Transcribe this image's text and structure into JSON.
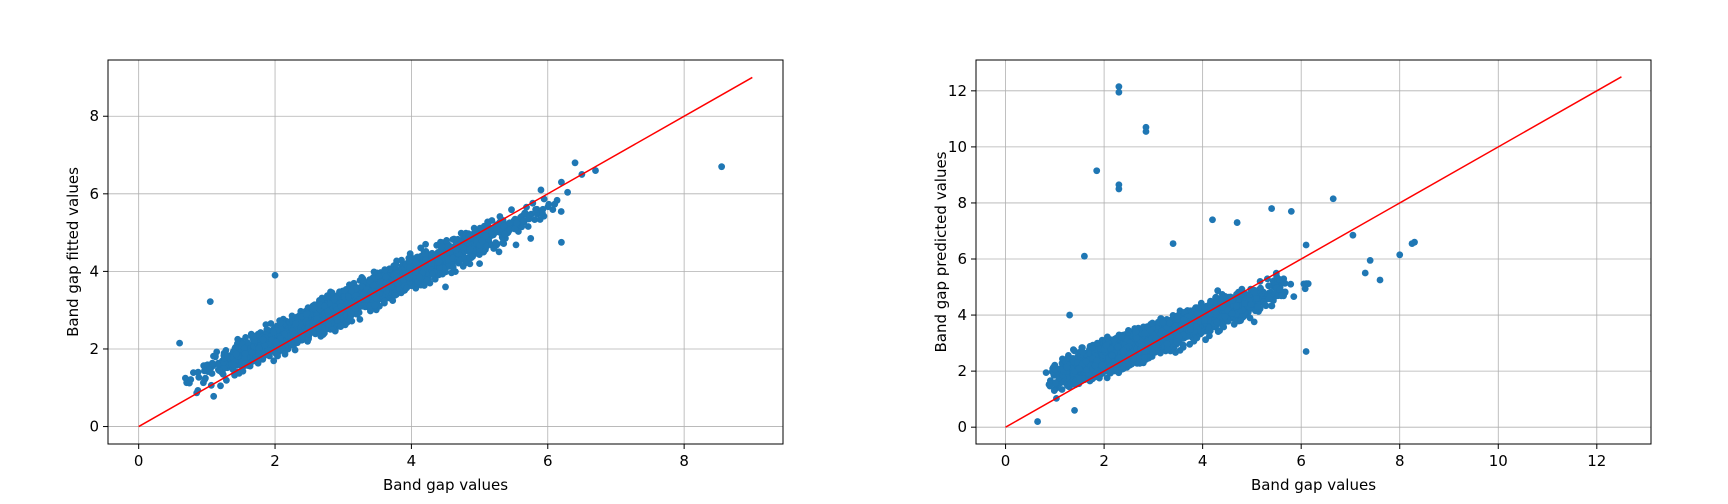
{
  "colors": {
    "point": "#1f77b4",
    "identity_line": "#ff0000",
    "grid": "#b0b0b0",
    "axes": "#000000"
  },
  "chart_data": [
    {
      "type": "scatter",
      "title": "",
      "xlabel": "Band gap values",
      "ylabel": "Band gap fitted values",
      "xlim": [
        -0.45,
        9.45
      ],
      "ylim": [
        -0.45,
        9.45
      ],
      "xticks": [
        0,
        2,
        4,
        6,
        8
      ],
      "yticks": [
        0,
        2,
        4,
        6,
        8
      ],
      "grid": true,
      "identity_line": {
        "x": [
          0,
          9
        ],
        "y": [
          0,
          9
        ]
      },
      "cloud": {
        "n": 2600,
        "x_range": [
          0.5,
          6.7
        ],
        "x_mode": 3.0,
        "slope": 0.85,
        "intercept": 0.55,
        "spread": 0.3
      },
      "outliers": [
        [
          8.55,
          6.7
        ],
        [
          6.4,
          6.8
        ],
        [
          6.7,
          6.6
        ],
        [
          6.2,
          6.3
        ],
        [
          6.5,
          6.5
        ],
        [
          5.9,
          6.1
        ],
        [
          1.05,
          3.22
        ],
        [
          1.1,
          0.78
        ],
        [
          1.2,
          1.05
        ],
        [
          0.6,
          2.15
        ],
        [
          2.0,
          3.9
        ],
        [
          5.75,
          4.85
        ],
        [
          6.2,
          4.75
        ],
        [
          5.0,
          4.2
        ],
        [
          4.5,
          3.6
        ]
      ]
    },
    {
      "type": "scatter",
      "title": "",
      "xlabel": "Band gap values",
      "ylabel": "Band gap predicted values",
      "xlim": [
        -0.6,
        13.1
      ],
      "ylim": [
        -0.6,
        13.1
      ],
      "xticks": [
        0,
        2,
        4,
        6,
        8,
        10,
        12
      ],
      "yticks": [
        0,
        2,
        4,
        6,
        8,
        10,
        12
      ],
      "grid": true,
      "identity_line": {
        "x": [
          0,
          12.5
        ],
        "y": [
          0,
          12.5
        ]
      },
      "cloud": {
        "n": 3200,
        "x_range": [
          0.6,
          6.5
        ],
        "x_mode": 2.6,
        "slope": 0.68,
        "intercept": 1.1,
        "spread": 0.42
      },
      "outliers": [
        [
          2.3,
          12.15
        ],
        [
          2.3,
          11.95
        ],
        [
          2.85,
          10.7
        ],
        [
          2.85,
          10.55
        ],
        [
          1.85,
          9.15
        ],
        [
          2.3,
          8.65
        ],
        [
          2.3,
          8.5
        ],
        [
          6.65,
          8.15
        ],
        [
          4.2,
          7.4
        ],
        [
          5.4,
          7.8
        ],
        [
          8.3,
          6.6
        ],
        [
          8.25,
          6.55
        ],
        [
          8.0,
          6.15
        ],
        [
          7.6,
          5.25
        ],
        [
          7.3,
          5.5
        ],
        [
          7.4,
          5.95
        ],
        [
          7.05,
          6.85
        ],
        [
          6.1,
          2.7
        ],
        [
          0.65,
          0.2
        ],
        [
          1.4,
          0.6
        ],
        [
          1.3,
          4.0
        ],
        [
          1.6,
          6.1
        ],
        [
          3.4,
          6.55
        ],
        [
          4.7,
          7.3
        ],
        [
          6.1,
          6.5
        ],
        [
          5.8,
          7.7
        ]
      ]
    }
  ]
}
